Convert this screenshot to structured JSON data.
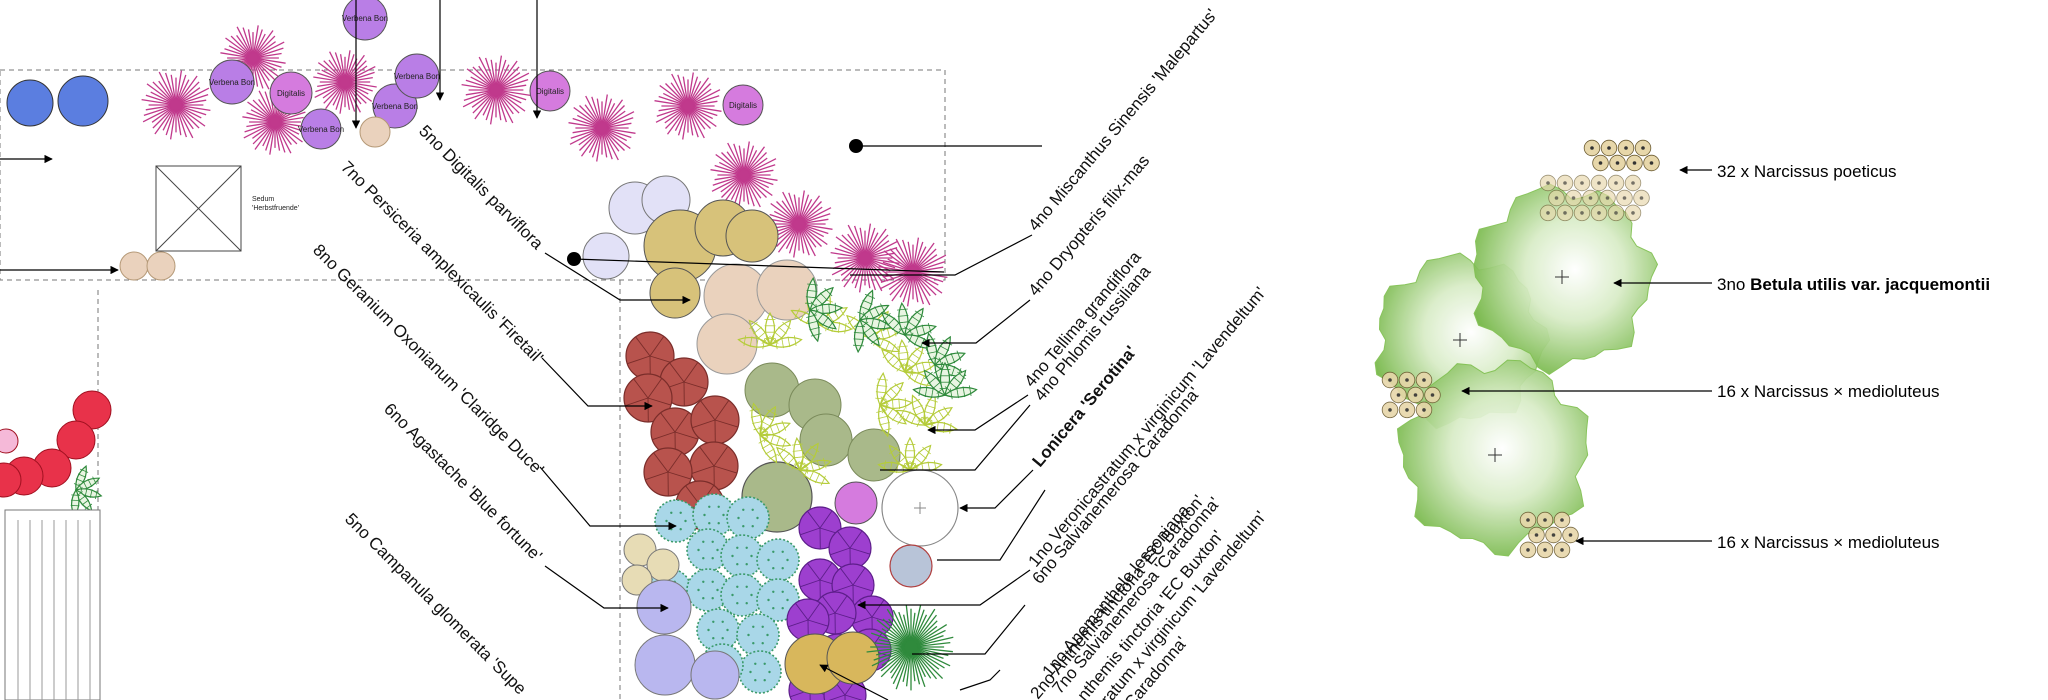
{
  "colors": {
    "miscanthus": "#c0398c",
    "verbena": "#b97ee6",
    "digitalis": "#d57bde",
    "lavender": "#c9c8f0",
    "tellima": "#d7c27a",
    "phlomis": "#ead2bd",
    "persicaria": "#b8534d",
    "geranium": "#a9d7e8",
    "agastache": "#b9b7ef",
    "salvia": "#9d3fcf",
    "anthemis": "#d8b75c",
    "sage": "#a9b98a",
    "fern": "#2f8a3c",
    "red": "#e8324a",
    "blue": "#5b7ee0",
    "betula": "#7fbf4f",
    "narcissus": "#e7d7aa"
  },
  "plan": {
    "small_labels": {
      "verbena": "Verbena Bon",
      "digitalis": "Digitalis",
      "sedum_line1": "Sedum",
      "sedum_line2": "'Herbstfruende'"
    },
    "labels_left": [
      "5no Digitalis parviflora",
      "7no Persiceria amplexicaulis 'Firetail'",
      "8no Geranium  Oxonianum 'Claridge Duce'",
      "6no Agastache 'Blue  fortune'",
      "5no Campanula glomerata  'Supe"
    ],
    "labels_right": [
      "4no Miscanthus Sinensis 'Malepartus'",
      "4no Dryopteris filix-mas",
      "4no Tellima grandiflora",
      "4no Phlomis russiliana",
      "Lonicera  'Serotina'",
      "1no Veronicastratum  x virginicum 'Lavendeltum'",
      "6no Salvianemerosa  'Caradonna'",
      "1no Anemanthele lessoniana",
      "2no Anthemis tinctoria  'EC Buxton'",
      "7no Salvianemerosa  'Caradonna'",
      "nthemis tinctoria  'EC Buxton'",
      "stratum  x virginicum 'Lavendeltum'",
      "'Caradonna'"
    ]
  },
  "trees": {
    "legend": [
      {
        "prefix": "32 x ",
        "name": "Narcissus poeticus"
      },
      {
        "prefix": "3no ",
        "name": "Betula utilis var. jacquemontii"
      },
      {
        "prefix": "16 x ",
        "name": "Narcissus × medioluteus"
      },
      {
        "prefix": "16 x ",
        "name": "Narcissus × medioluteus"
      }
    ]
  }
}
